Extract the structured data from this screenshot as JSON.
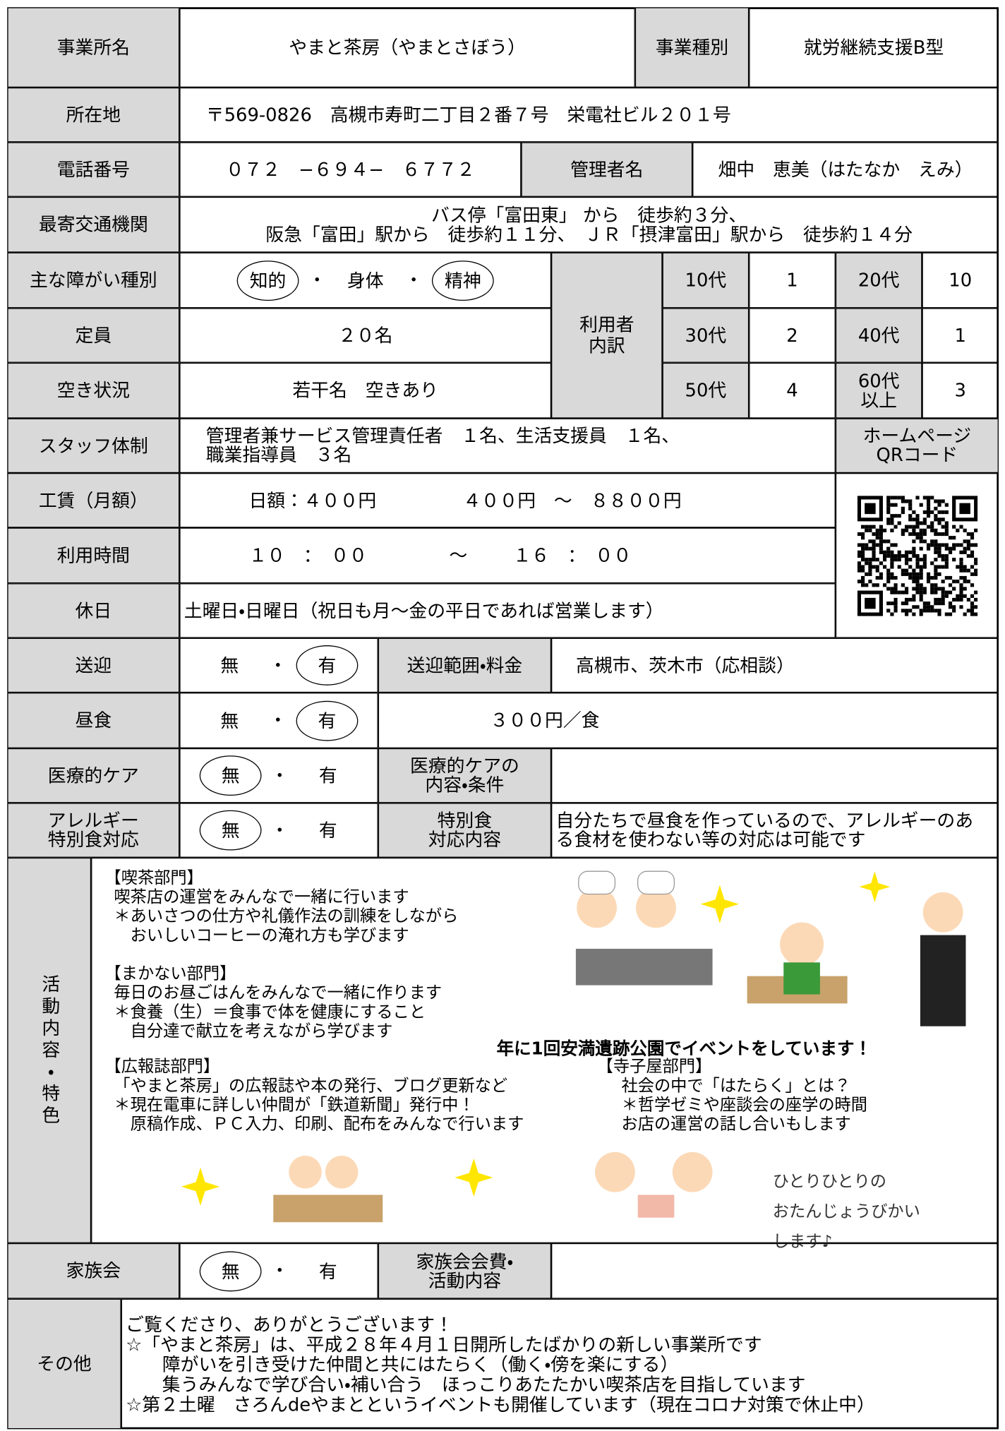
{
  "form": {
    "office_name_label": "事業所名",
    "office_name": "やまと茶房（やまとさぼう）",
    "business_type_label": "事業種別",
    "business_type": "就労継続支援B型",
    "address_label": "所在地",
    "address": "〒569-0826　高槻市寿町二丁目２番７号　栄電社ビル２０１号",
    "phone_label": "電話番号",
    "phone": "０７２　−６９４−　６７７２",
    "manager_label": "管理者名",
    "manager": "畑中　恵美（はたなか　えみ）",
    "transport_label": "最寄交通機関",
    "transport": [
      "バス停「富田東」 から　徒歩約３分、",
      "阪急「富田」駅から　徒歩約１１分、　ＪＲ「摂津富田」駅から　徒歩約１４分"
    ],
    "disability_label": "主な障がい種別",
    "separator": "・",
    "disability": {
      "options": [
        "知的",
        "身体",
        "精神"
      ],
      "circled": [
        0,
        2
      ]
    },
    "users_label": [
      "利用者",
      "内訳"
    ],
    "users": [
      {
        "age": "10代",
        "count": 1
      },
      {
        "age": "20代",
        "count": 10
      },
      {
        "age": "30代",
        "count": 2
      },
      {
        "age": "40代",
        "count": 1
      },
      {
        "age": "50代",
        "count": 4
      },
      {
        "age": [
          "60代",
          "以上"
        ],
        "count": 3
      }
    ],
    "capacity_label": "定員",
    "capacity": "２０名",
    "vacancy_label": "空き状況",
    "vacancy": "若干名　空きあり",
    "staff_label": "スタッフ体制",
    "staff": [
      "管理者兼サービス管理責任者　１名、生活支援員　１名、",
      "職業指導員　３名"
    ],
    "homepage_label": [
      "ホームページ",
      "QRコード"
    ],
    "wage_label": "工賃（月額）",
    "wage_daily": "日額：４００円",
    "wage_range": "４００円　～　８８００円",
    "hours_label": "利用時間",
    "hours_start": "１０　：　００",
    "hours_sep": "～",
    "hours_end": "１６　：　００",
    "holiday_label": "休日",
    "holiday": "土曜日・日曜日（祝日も月～金の平日であれば営業します）",
    "pickup_label": "送迎",
    "pickup": {
      "options": [
        "無",
        "有"
      ],
      "circled": [
        1
      ]
    },
    "pickup_range_label": "送迎範囲・料金",
    "pickup_range": "高槻市、茨木市（応相談）",
    "lunch_label": "昼食",
    "lunch": {
      "options": [
        "無",
        "有"
      ],
      "circled": [
        1
      ]
    },
    "lunch_price": "３００円／食",
    "medical_label": "医療的ケア",
    "medical": {
      "options": [
        "無",
        "有"
      ],
      "circled": [
        0
      ]
    },
    "medical_detail_label": [
      "医療的ケアの",
      "内容・条件"
    ],
    "allergy_label": [
      "アレルギー",
      "特別食対応"
    ],
    "allergy": {
      "options": [
        "無",
        "有"
      ],
      "circled": [
        0
      ]
    },
    "allergy_detail_label": [
      "特別食",
      "対応内容"
    ],
    "allergy_detail": [
      "自分たちで昼食を作っているので、アレルギーのあ",
      "る食材を使わない等の対応は可能です"
    ],
    "activities_label": "活動内容・特色",
    "sections": [
      {
        "title": "【喫茶部門】",
        "lines": [
          "喫茶店の運営をみんなで一緒に行います",
          "＊あいさつの仕方や礼儀作法の訓練をしながら",
          "　おいしいコーヒーの淹れ方も学びます"
        ]
      },
      {
        "title": "【まかない部門】",
        "lines": [
          "毎日のお昼ごはんをみんなで一緒に作ります",
          "＊食養（生）＝食事で体を健康にすること",
          "　自分達で献立を考えながら学びます"
        ]
      },
      {
        "title": "【広報誌部門】",
        "lines": [
          "「やまと茶房」の広報誌や本の発行、ブログ更新など",
          "＊現在電車に詳しい仲間が「鉄道新聞」発行中！",
          "　原稿作成、ＰＣ入力、印刷、配布をみんなで行います"
        ]
      },
      {
        "title": "【寺子屋部門】",
        "lines": [
          "社会の中で「はたらく」とは？",
          "＊哲学ゼミや座談会の座学の時間",
          "お店の運営の話し合いもします"
        ]
      }
    ],
    "event": "年に1回安満遺跡公園でイベントをしています！",
    "birthday": [
      "ひとりひとりの",
      "おたんじょうびかい",
      "します♪"
    ],
    "family_label": "家族会",
    "family": {
      "options": [
        "無",
        "有"
      ],
      "circled": [
        0
      ]
    },
    "family_detail_label": [
      "家族会会費・",
      "活動内容"
    ],
    "other_label": "その他",
    "other": [
      "ご覧くださり、ありがとうございます！",
      "☆「やまと茶房」は、平成２８年４月１日開所したばかりの新しい事業所です",
      "　　障がいを引き受けた仲間と共にはたらく（働く・傍を楽にする）",
      "　　集うみんなで学び合い・補い合う　ほっこりあたたかい喫茶店を目指しています",
      "☆第２土曜　さろんdeやまとというイベントも開催しています（現在コロナ対策で休止中）"
    ]
  }
}
